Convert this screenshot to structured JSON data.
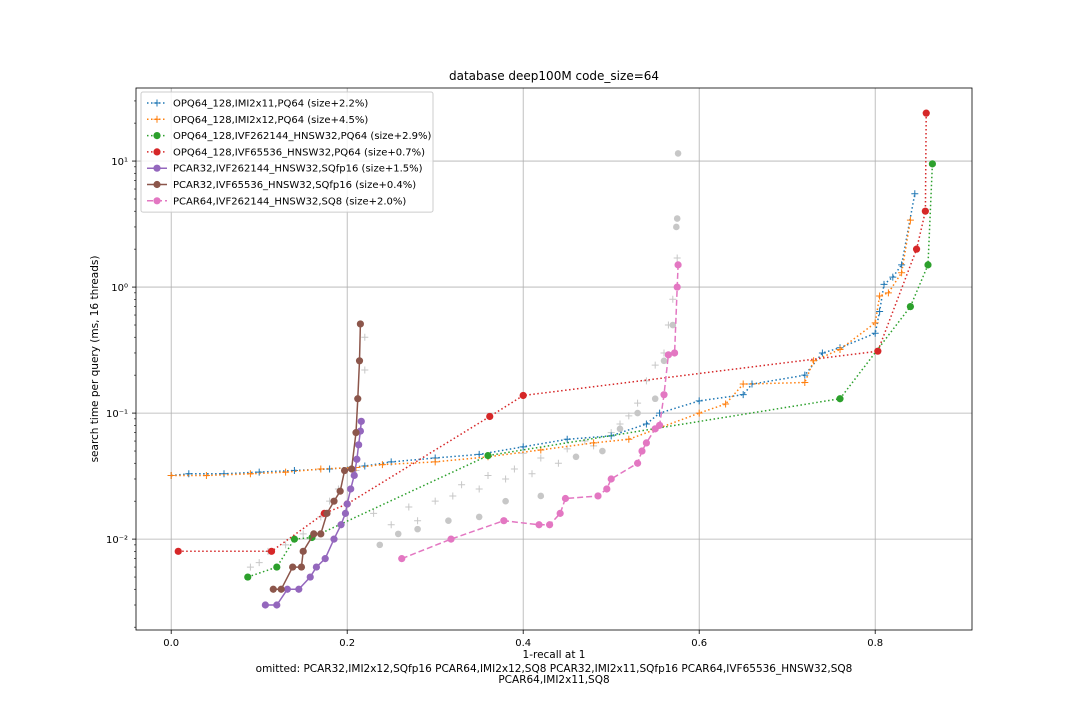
{
  "chart_data": {
    "type": "scatter",
    "title": "database deep100M code_size=64",
    "xlabel": "1-recall at 1",
    "ylabel": "search time per query (ms, 16 threads)",
    "footnote_lines": [
      "omitted: PCAR32,IMI2x12,SQfp16 PCAR64,IMI2x12,SQ8 PCAR32,IMI2x11,SQfp16 PCAR64,IVF65536_HNSW32,SQ8",
      "PCAR64,IMI2x11,SQ8"
    ],
    "xlim": [
      -0.04,
      0.91
    ],
    "ylim": [
      0.0019,
      38
    ],
    "yscale": "log",
    "grid": true,
    "legend_position": "upper-left",
    "xticks": [
      0.0,
      0.2,
      0.4,
      0.6,
      0.8
    ],
    "xtick_labels": [
      "0.0",
      "0.2",
      "0.4",
      "0.6",
      "0.8"
    ],
    "yticks": [
      0.01,
      0.1,
      1,
      10
    ],
    "ytick_labels": [
      "10⁻²",
      "10⁻¹",
      "10⁰",
      "10¹"
    ],
    "series": [
      {
        "name": "OPQ64_128,IMI2x11,PQ64 (size+2.2%)",
        "color": "#1f77b4",
        "marker": "plus",
        "linestyle": "dotted",
        "x": [
          0.0,
          0.02,
          0.06,
          0.1,
          0.14,
          0.18,
          0.22,
          0.25,
          0.3,
          0.35,
          0.4,
          0.45,
          0.5,
          0.54,
          0.555,
          0.6,
          0.65,
          0.66,
          0.72,
          0.74,
          0.76,
          0.8,
          0.805,
          0.81,
          0.82,
          0.83,
          0.845
        ],
        "y": [
          0.032,
          0.033,
          0.033,
          0.034,
          0.035,
          0.036,
          0.038,
          0.041,
          0.044,
          0.047,
          0.054,
          0.062,
          0.066,
          0.082,
          0.1,
          0.125,
          0.14,
          0.17,
          0.2,
          0.3,
          0.33,
          0.43,
          0.64,
          1.05,
          1.2,
          1.5,
          5.5
        ]
      },
      {
        "name": "OPQ64_128,IMI2x12,PQ64 (size+4.5%)",
        "color": "#ff7f0e",
        "marker": "plus",
        "linestyle": "dotted",
        "x": [
          0.0,
          0.04,
          0.09,
          0.13,
          0.17,
          0.21,
          0.24,
          0.3,
          0.36,
          0.42,
          0.48,
          0.52,
          0.6,
          0.63,
          0.65,
          0.72,
          0.73,
          0.76,
          0.8,
          0.805,
          0.815,
          0.83,
          0.84
        ],
        "y": [
          0.032,
          0.032,
          0.033,
          0.034,
          0.036,
          0.037,
          0.039,
          0.041,
          0.045,
          0.051,
          0.058,
          0.062,
          0.1,
          0.118,
          0.17,
          0.175,
          0.26,
          0.32,
          0.52,
          0.85,
          0.9,
          1.3,
          3.4
        ]
      },
      {
        "name": "OPQ64_128,IVF262144_HNSW32,PQ64 (size+2.9%)",
        "color": "#2ca02c",
        "marker": "circle",
        "linestyle": "dotted",
        "x": [
          0.087,
          0.12,
          0.14,
          0.16,
          0.36,
          0.76,
          0.84,
          0.86,
          0.865
        ],
        "y": [
          0.005,
          0.006,
          0.01,
          0.0103,
          0.046,
          0.13,
          0.7,
          1.5,
          9.5
        ]
      },
      {
        "name": "OPQ64_128,IVF65536_HNSW32,PQ64 (size+0.7%)",
        "color": "#d62728",
        "marker": "circle",
        "linestyle": "dotted",
        "x": [
          0.008,
          0.114,
          0.174,
          0.2,
          0.362,
          0.4,
          0.803,
          0.847,
          0.857,
          0.858
        ],
        "y": [
          0.008,
          0.008,
          0.016,
          0.019,
          0.094,
          0.138,
          0.31,
          2.0,
          4.0,
          24.0
        ]
      },
      {
        "name": "PCAR32,IVF262144_HNSW32,SQfp16 (size+1.5%)",
        "color": "#9467bd",
        "marker": "circle",
        "linestyle": "solid",
        "x": [
          0.107,
          0.12,
          0.132,
          0.145,
          0.158,
          0.165,
          0.175,
          0.185,
          0.193,
          0.198,
          0.2,
          0.204,
          0.208,
          0.211,
          0.213,
          0.215,
          0.216
        ],
        "y": [
          0.003,
          0.003,
          0.004,
          0.004,
          0.005,
          0.006,
          0.007,
          0.01,
          0.013,
          0.016,
          0.019,
          0.025,
          0.032,
          0.043,
          0.056,
          0.072,
          0.086
        ]
      },
      {
        "name": "PCAR32,IVF65536_HNSW32,SQfp16 (size+0.4%)",
        "color": "#8c564b",
        "marker": "circle",
        "linestyle": "solid",
        "x": [
          0.116,
          0.125,
          0.138,
          0.148,
          0.15,
          0.162,
          0.17,
          0.177,
          0.185,
          0.192,
          0.197,
          0.205,
          0.21,
          0.212,
          0.214,
          0.215
        ],
        "y": [
          0.004,
          0.004,
          0.006,
          0.006,
          0.008,
          0.011,
          0.011,
          0.016,
          0.02,
          0.024,
          0.035,
          0.036,
          0.07,
          0.13,
          0.26,
          0.51
        ]
      },
      {
        "name": "PCAR64,IVF262144_HNSW32,SQ8 (size+2.0%)",
        "color": "#e377c2",
        "marker": "circle",
        "linestyle": "dashed",
        "x": [
          0.262,
          0.318,
          0.378,
          0.418,
          0.43,
          0.442,
          0.448,
          0.485,
          0.495,
          0.5,
          0.53,
          0.535,
          0.54,
          0.55,
          0.555,
          0.56,
          0.565,
          0.572,
          0.575,
          0.576
        ],
        "y": [
          0.007,
          0.01,
          0.014,
          0.013,
          0.013,
          0.016,
          0.021,
          0.022,
          0.025,
          0.03,
          0.04,
          0.05,
          0.058,
          0.075,
          0.08,
          0.14,
          0.29,
          0.3,
          1.0,
          1.5
        ]
      }
    ],
    "background_points": {
      "color": "#c7c7c7",
      "plus": {
        "x": [
          0.09,
          0.1,
          0.11,
          0.13,
          0.15,
          0.17,
          0.18,
          0.19,
          0.21,
          0.22,
          0.22,
          0.23,
          0.25,
          0.27,
          0.28,
          0.3,
          0.32,
          0.33,
          0.35,
          0.36,
          0.38,
          0.39,
          0.4,
          0.41,
          0.42,
          0.44,
          0.45,
          0.47,
          0.48,
          0.5,
          0.51,
          0.52,
          0.53,
          0.54,
          0.55,
          0.56,
          0.565,
          0.57,
          0.575
        ],
        "y": [
          0.006,
          0.0065,
          0.008,
          0.009,
          0.011,
          0.015,
          0.02,
          0.025,
          0.035,
          0.22,
          0.4,
          0.016,
          0.013,
          0.018,
          0.014,
          0.02,
          0.022,
          0.027,
          0.025,
          0.032,
          0.03,
          0.036,
          0.048,
          0.033,
          0.044,
          0.04,
          0.052,
          0.06,
          0.055,
          0.07,
          0.082,
          0.095,
          0.12,
          0.18,
          0.24,
          0.3,
          0.5,
          0.8,
          1.7
        ]
      },
      "circle": {
        "x": [
          0.237,
          0.258,
          0.28,
          0.315,
          0.35,
          0.38,
          0.42,
          0.46,
          0.49,
          0.51,
          0.53,
          0.55,
          0.56,
          0.57,
          0.574,
          0.575,
          0.576
        ],
        "y": [
          0.009,
          0.011,
          0.012,
          0.014,
          0.015,
          0.02,
          0.022,
          0.045,
          0.05,
          0.075,
          0.1,
          0.13,
          0.26,
          0.5,
          3.0,
          3.5,
          11.5
        ]
      }
    }
  }
}
